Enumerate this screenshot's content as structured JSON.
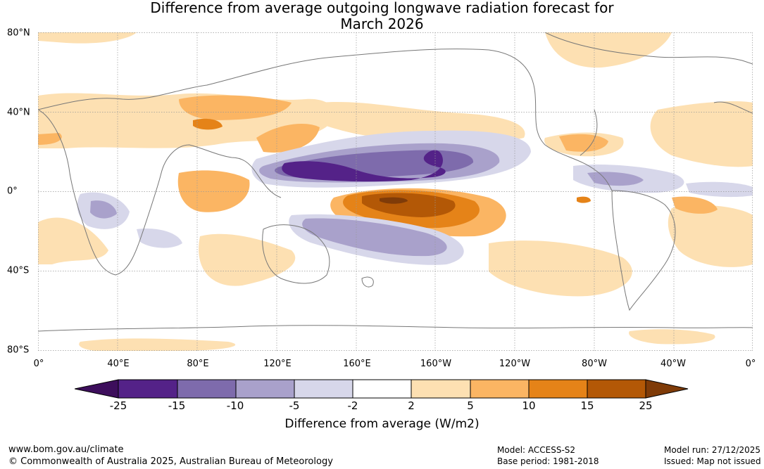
{
  "title_line1": "Difference from average outgoing longwave radiation forecast for",
  "title_line2": "March 2026",
  "y_axis_labels": [
    "80°N",
    "40°N",
    "0°",
    "40°S",
    "80°S"
  ],
  "x_axis_labels": [
    "0°",
    "40°E",
    "80°E",
    "120°E",
    "160°E",
    "160°W",
    "120°W",
    "80°W",
    "40°W",
    "0°"
  ],
  "colorbar": {
    "labels": [
      "-25",
      "-15",
      "-10",
      "-5",
      "-2",
      "2",
      "5",
      "10",
      "15",
      "25"
    ],
    "colors": [
      "#3d0e5c",
      "#542288",
      "#7e6bac",
      "#a9a1cb",
      "#d7d7ea",
      "#ffffff",
      "#fde0b2",
      "#fbb563",
      "#e58318",
      "#b35806",
      "#7f3b08"
    ],
    "title": "Difference from average (W/m2)"
  },
  "colors": {
    "land_outline": "#777777",
    "grid": "#999999"
  },
  "footer": {
    "url": "www.bom.gov.au/climate",
    "copyright": "© Commonwealth of Australia 2025, Australian Bureau of Meteorology",
    "model": "Model: ACCESS-S2",
    "base_period": "Base period: 1981-2018",
    "model_run": "Model run: 27/12/2025",
    "issued": "Issued: Map not issued"
  }
}
